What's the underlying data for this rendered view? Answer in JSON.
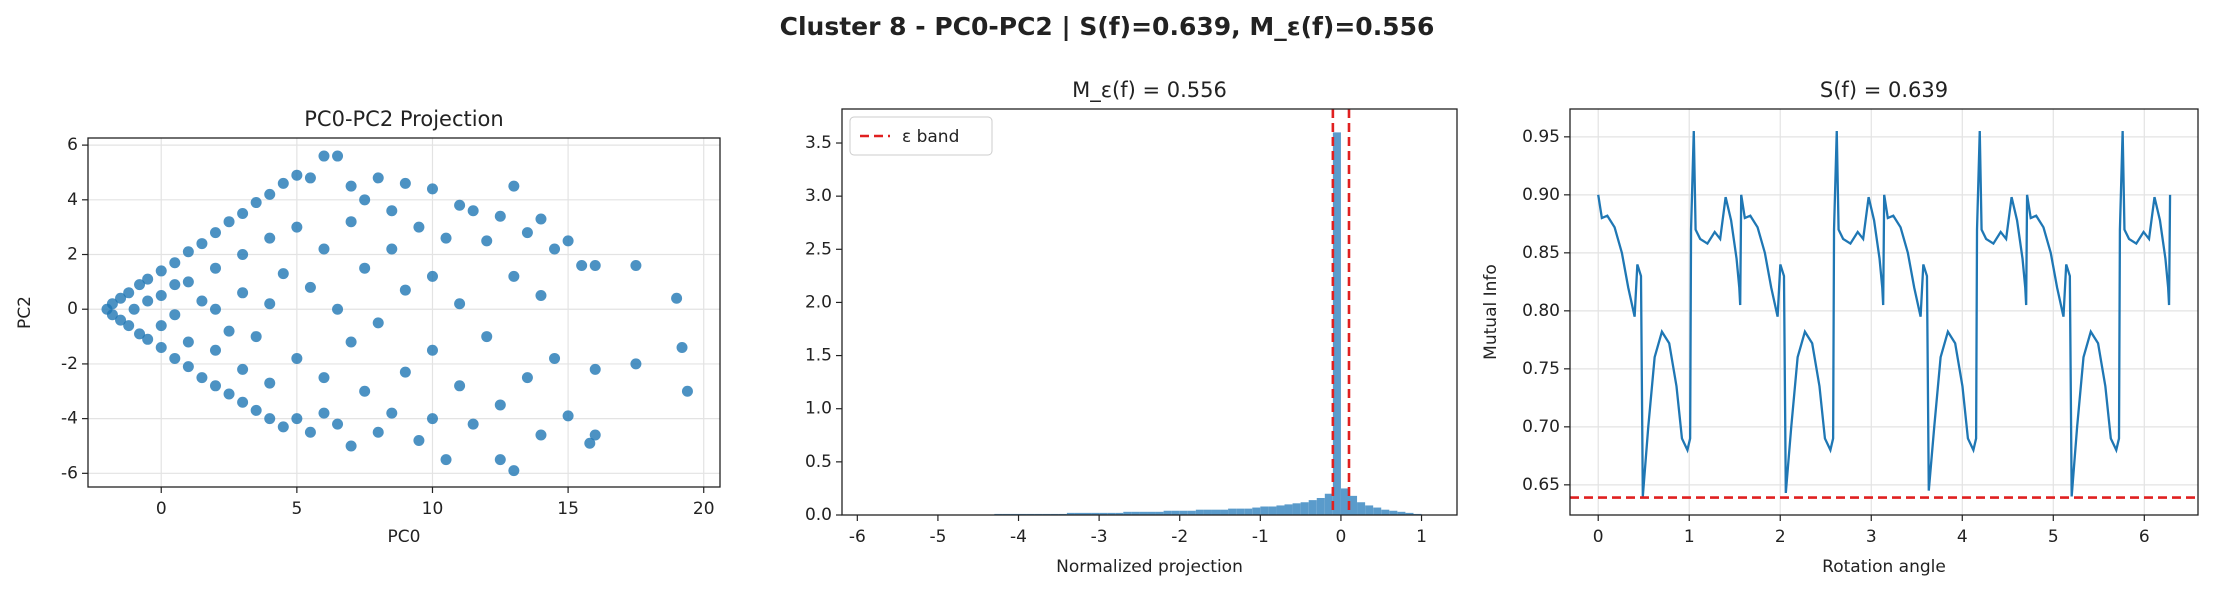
{
  "title": "Cluster 8 - PC0-PC2 | S(f)=0.639, M_ε(f)=0.556",
  "chart_data": [
    {
      "type": "scatter",
      "title": "PC0-PC2 Projection",
      "xlabel": "PC0",
      "ylabel": "PC2",
      "xlim": [
        -2.7,
        20.6
      ],
      "ylim": [
        -6.5,
        6.26
      ],
      "xticks": [
        0,
        5,
        10,
        15,
        20
      ],
      "yticks": [
        -6,
        -4,
        -2,
        0,
        2,
        4,
        6
      ],
      "grid": true,
      "x": [
        -2,
        -1.8,
        -1.8,
        -1.5,
        -1.5,
        -1.2,
        -1.2,
        -1,
        -0.8,
        -0.8,
        -0.5,
        -0.5,
        -0.5,
        0,
        0,
        0,
        0,
        0.5,
        0.5,
        0.5,
        0.5,
        1,
        1,
        1,
        1,
        1.5,
        1.5,
        1.5,
        2,
        2,
        2,
        2,
        2,
        2.5,
        2.5,
        2.5,
        3,
        3,
        3,
        3,
        3,
        3.5,
        3.5,
        3.5,
        4,
        4,
        4,
        4,
        4,
        4.5,
        4.5,
        4.5,
        5,
        5,
        5,
        5,
        5.5,
        5.5,
        5.5,
        6,
        6,
        6,
        6,
        6.5,
        6.5,
        6.5,
        7,
        7,
        7,
        7,
        7.5,
        7.5,
        7.5,
        8,
        8,
        8,
        8.5,
        8.5,
        8.5,
        9,
        9,
        9,
        9.5,
        9.5,
        10,
        10,
        10,
        10,
        10.5,
        10.5,
        11,
        11,
        11,
        11.5,
        11.5,
        12,
        12,
        12.5,
        12.5,
        12.5,
        13,
        13,
        13,
        13.5,
        13.5,
        14,
        14,
        14,
        14.5,
        14.5,
        15,
        15,
        15.5,
        16,
        16,
        16,
        17.5,
        17.5,
        19,
        19.2,
        19.4,
        15.8
      ],
      "series": [
        {
          "color": "#1f77b4",
          "values": [
            0,
            0.2,
            -0.2,
            0.4,
            -0.4,
            0.6,
            -0.6,
            0,
            0.9,
            -0.9,
            1.1,
            -1.1,
            0.3,
            1.4,
            -1.4,
            0.5,
            -0.6,
            1.7,
            -1.8,
            0.9,
            -0.2,
            2.1,
            -2.1,
            1,
            -1.2,
            2.4,
            -2.5,
            0.3,
            2.8,
            -2.8,
            1.5,
            -1.5,
            0,
            3.2,
            -3.1,
            -0.8,
            3.5,
            -3.4,
            2,
            -2.2,
            0.6,
            3.9,
            -3.7,
            -1,
            4.2,
            -4,
            2.6,
            -2.7,
            0.2,
            4.6,
            -4.3,
            1.3,
            4.9,
            -4,
            -1.8,
            3,
            4.8,
            -4.5,
            0.8,
            5.6,
            -3.8,
            2.2,
            -2.5,
            5.6,
            -4.2,
            0,
            4.5,
            -5,
            3.2,
            -1.2,
            4,
            -3,
            1.5,
            4.8,
            -4.5,
            -0.5,
            3.6,
            -3.8,
            2.2,
            4.6,
            -2.3,
            0.7,
            3,
            -4.8,
            4.4,
            -4,
            1.2,
            -1.5,
            2.6,
            -5.5,
            3.8,
            -2.8,
            0.2,
            3.6,
            -4.2,
            2.5,
            -1,
            3.4,
            -3.5,
            -5.5,
            4.5,
            -5.9,
            1.2,
            2.8,
            -2.5,
            3.3,
            -4.6,
            0.5,
            2.2,
            -1.8,
            2.5,
            -3.9,
            1.6,
            -4.6,
            1.6,
            -2.2,
            1.6,
            -2,
            0.4,
            -1.4,
            -3,
            -4.9
          ]
        }
      ]
    },
    {
      "type": "histogram",
      "title": "M_ε(f) = 0.556",
      "xlabel": "Normalized projection",
      "xlim": [
        -6.19,
        1.44
      ],
      "ylim": [
        0,
        3.82
      ],
      "xticks": [
        -6,
        -5,
        -4,
        -3,
        -2,
        -1,
        0,
        1
      ],
      "yticks": [
        {
          "value": 0,
          "label": "0.0"
        },
        0.5,
        {
          "value": 1,
          "label": "1.0"
        },
        1.5,
        {
          "value": 2,
          "label": "2.0"
        },
        2.5,
        {
          "value": 3,
          "label": "3.0"
        },
        3.5
      ],
      "grid": false,
      "color": "#5a9bcb",
      "bins": [
        -4.3,
        -4.2,
        -4.1,
        -4,
        -3.9,
        -3.8,
        -3.7,
        -3.6,
        -3.5,
        -3.4,
        -3.3,
        -3.2,
        -3.1,
        -3,
        -2.9,
        -2.8,
        -2.7,
        -2.6,
        -2.5,
        -2.4,
        -2.3,
        -2.2,
        -2.1,
        -2,
        -1.9,
        -1.8,
        -1.7,
        -1.6,
        -1.5,
        -1.4,
        -1.3,
        -1.2,
        -1.1,
        -1,
        -0.9,
        -0.8,
        -0.7,
        -0.6,
        -0.5,
        -0.4,
        -0.3,
        -0.2,
        -0.1,
        0,
        0.1,
        0.2,
        0.3,
        0.4,
        0.5,
        0.6,
        0.7,
        0.8,
        0.9,
        1
      ],
      "values": [
        0.01,
        0.01,
        0.01,
        0.01,
        0.01,
        0.01,
        0.01,
        0.01,
        0.01,
        0.02,
        0.02,
        0.02,
        0.02,
        0.02,
        0.02,
        0.02,
        0.03,
        0.03,
        0.03,
        0.03,
        0.03,
        0.04,
        0.04,
        0.04,
        0.04,
        0.05,
        0.05,
        0.05,
        0.05,
        0.06,
        0.06,
        0.06,
        0.07,
        0.08,
        0.08,
        0.09,
        0.1,
        0.11,
        0.12,
        0.14,
        0.16,
        0.2,
        3.6,
        0.25,
        0.18,
        0.12,
        0.09,
        0.07,
        0.05,
        0.04,
        0.03,
        0.02,
        0.01
      ],
      "reference_lines": {
        "name": "ε band",
        "color": "#e02020",
        "values": [
          -0.1,
          0.1
        ]
      },
      "legend": "upper left"
    },
    {
      "type": "line",
      "title": "S(f) = 0.639",
      "xlabel": "Rotation angle",
      "ylabel": "Mutual Info",
      "xlim": [
        -0.31,
        6.59
      ],
      "ylim": [
        0.624,
        0.974
      ],
      "xticks": [
        0,
        1,
        2,
        3,
        4,
        5,
        6
      ],
      "yticks": [
        0.65,
        {
          "value": 0.7,
          "label": "0.70"
        },
        0.75,
        {
          "value": 0.8,
          "label": "0.80"
        },
        0.85,
        {
          "value": 0.9,
          "label": "0.90"
        },
        0.95
      ],
      "grid": true,
      "x": [
        0,
        0.04,
        0.1,
        0.18,
        0.26,
        0.33,
        0.4,
        0.43,
        0.47,
        0.49,
        0.55,
        0.62,
        0.7,
        0.78,
        0.86,
        0.92,
        0.98,
        1.01,
        1.02,
        1.05,
        1.07,
        1.12,
        1.2,
        1.28,
        1.34,
        1.4,
        1.46,
        1.52,
        1.55,
        1.56,
        1.571,
        1.611,
        1.671,
        1.751,
        1.831,
        1.901,
        1.971,
        2.001,
        2.041,
        2.061,
        2.121,
        2.191,
        2.271,
        2.351,
        2.431,
        2.491,
        2.551,
        2.581,
        2.591,
        2.621,
        2.641,
        2.691,
        2.771,
        2.851,
        2.911,
        2.971,
        3.031,
        3.091,
        3.121,
        3.131,
        3.142,
        3.182,
        3.242,
        3.322,
        3.402,
        3.472,
        3.542,
        3.572,
        3.612,
        3.632,
        3.692,
        3.762,
        3.842,
        3.922,
        4.002,
        4.062,
        4.122,
        4.152,
        4.162,
        4.192,
        4.212,
        4.262,
        4.342,
        4.422,
        4.482,
        4.542,
        4.602,
        4.662,
        4.692,
        4.702,
        4.712,
        4.752,
        4.812,
        4.892,
        4.972,
        5.042,
        5.112,
        5.142,
        5.182,
        5.202,
        5.262,
        5.332,
        5.412,
        5.492,
        5.572,
        5.632,
        5.692,
        5.722,
        5.732,
        5.762,
        5.782,
        5.832,
        5.912,
        5.992,
        6.052,
        6.112,
        6.172,
        6.232,
        6.262,
        6.272,
        6.283
      ],
      "series": [
        {
          "color": "#1f77b4",
          "values": [
            0.9,
            0.88,
            0.882,
            0.872,
            0.85,
            0.82,
            0.795,
            0.84,
            0.83,
            0.64,
            0.7,
            0.76,
            0.782,
            0.772,
            0.735,
            0.69,
            0.68,
            0.69,
            0.87,
            0.955,
            0.87,
            0.862,
            0.858,
            0.868,
            0.862,
            0.898,
            0.878,
            0.845,
            0.82,
            0.805,
            0.9,
            0.88,
            0.882,
            0.872,
            0.85,
            0.82,
            0.795,
            0.84,
            0.83,
            0.643,
            0.7,
            0.76,
            0.782,
            0.772,
            0.735,
            0.69,
            0.68,
            0.69,
            0.87,
            0.955,
            0.87,
            0.862,
            0.858,
            0.868,
            0.862,
            0.898,
            0.878,
            0.845,
            0.82,
            0.805,
            0.9,
            0.88,
            0.882,
            0.872,
            0.85,
            0.82,
            0.795,
            0.84,
            0.83,
            0.645,
            0.7,
            0.76,
            0.782,
            0.772,
            0.735,
            0.69,
            0.68,
            0.69,
            0.87,
            0.955,
            0.87,
            0.862,
            0.858,
            0.868,
            0.862,
            0.898,
            0.878,
            0.845,
            0.82,
            0.805,
            0.9,
            0.88,
            0.882,
            0.872,
            0.85,
            0.82,
            0.795,
            0.84,
            0.83,
            0.64,
            0.7,
            0.76,
            0.782,
            0.772,
            0.735,
            0.69,
            0.68,
            0.69,
            0.87,
            0.955,
            0.87,
            0.862,
            0.858,
            0.868,
            0.862,
            0.898,
            0.878,
            0.845,
            0.82,
            0.805,
            0.9
          ]
        }
      ],
      "reference_line": {
        "value": 0.639,
        "color": "#e02020"
      }
    }
  ]
}
